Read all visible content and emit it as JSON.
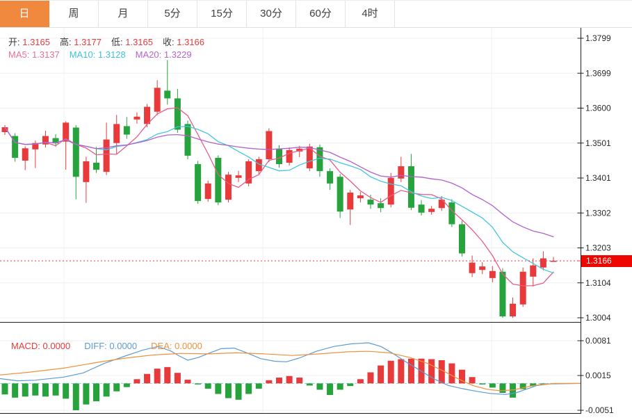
{
  "tabs": {
    "items": [
      {
        "label": "日",
        "active": true
      },
      {
        "label": "周",
        "active": false
      },
      {
        "label": "月",
        "active": false
      },
      {
        "label": "5分",
        "active": false
      },
      {
        "label": "15分",
        "active": false
      },
      {
        "label": "30分",
        "active": false
      },
      {
        "label": "60分",
        "active": false
      },
      {
        "label": "4时",
        "active": false
      }
    ],
    "active_color": "#f0883e"
  },
  "ohlc_legend": {
    "items": [
      {
        "label": "开:",
        "value": "1.3165"
      },
      {
        "label": "高:",
        "value": "1.3177"
      },
      {
        "label": "低:",
        "value": "1.3165"
      },
      {
        "label": "收:",
        "value": "1.3166"
      }
    ],
    "label_color": "#3a3a3a",
    "value_color": "#e83b3b"
  },
  "ma_legend": {
    "items": [
      {
        "label": "MA5:",
        "value": "1.3137",
        "color": "#ec6f96"
      },
      {
        "label": "MA10:",
        "value": "1.3128",
        "color": "#3fc3da"
      },
      {
        "label": "MA20:",
        "value": "1.3229",
        "color": "#b564ce"
      }
    ]
  },
  "macd_legend": {
    "items": [
      {
        "label": "MACD:",
        "value": "0.0000",
        "color": "#e83b3b"
      },
      {
        "label": "DIFF:",
        "value": "0.0000",
        "color": "#5b9bd5"
      },
      {
        "label": "DEA:",
        "value": "0.0000",
        "color": "#f0913c"
      }
    ]
  },
  "price_marker": {
    "value": "1.3166",
    "price": 1.3166,
    "badge_color": "#ee0600"
  },
  "colors": {
    "up_candle": "#e8393b",
    "down_candle": "#26a33c",
    "grid": "#edf0f3",
    "axis": "#2b2b2b",
    "axis_text": "#2a2a2a",
    "dotted_price_line": "#f2323c",
    "zero_dash_line": "#8fd3e6",
    "ma5_line": "#e75c8a",
    "ma10_line": "#44c7dd",
    "ma20_line": "#b261ca",
    "diff_line": "#5b9bd5",
    "dea_line": "#f0913c"
  },
  "chart_data": [
    {
      "type": "candlestick",
      "panel": "main",
      "title": "",
      "legend_position": "top-left",
      "grid": true,
      "y_tick_labels": [
        "1.3799",
        "1.3699",
        "1.3600",
        "1.3501",
        "1.3401",
        "1.3302",
        "1.3203",
        "1.3104",
        "1.3004"
      ],
      "y_tick_values": [
        1.3799,
        1.3699,
        1.36,
        1.3501,
        1.3401,
        1.3302,
        1.3203,
        1.3104,
        1.3004
      ],
      "ylim": [
        1.2985,
        1.383
      ],
      "current_price": 1.3166,
      "ma_windows": [
        5,
        10,
        20
      ],
      "candles": {
        "open": [
          1.3532,
          1.3521,
          1.3451,
          1.3483,
          1.3497,
          1.3515,
          1.3505,
          1.3545,
          1.339,
          1.3445,
          1.3419,
          1.3501,
          1.3549,
          1.3568,
          1.3555,
          1.359,
          1.365,
          1.3628,
          1.3555,
          1.3441,
          1.3342,
          1.3459,
          1.334,
          1.3402,
          1.3386,
          1.3421,
          1.3455,
          1.3485,
          1.3445,
          1.3477,
          1.3429,
          1.3489,
          1.3421,
          1.3405,
          1.3312,
          1.3344,
          1.334,
          1.333,
          1.3326,
          1.34,
          1.3435,
          1.3326,
          1.3305,
          1.3316,
          1.3332,
          1.327,
          1.3131,
          1.314,
          1.3117,
          1.3135,
          1.3008,
          1.3042,
          1.3121,
          1.3147,
          1.3165
        ],
        "high": [
          1.3552,
          1.3529,
          1.3492,
          1.3508,
          1.3536,
          1.3526,
          1.3563,
          1.3552,
          1.3462,
          1.349,
          1.3559,
          1.3581,
          1.3575,
          1.3588,
          1.3612,
          1.368,
          1.3737,
          1.3655,
          1.3565,
          1.345,
          1.3394,
          1.3466,
          1.3419,
          1.3422,
          1.3455,
          1.3462,
          1.3543,
          1.3495,
          1.3489,
          1.3493,
          1.3499,
          1.3497,
          1.3429,
          1.3413,
          1.3368,
          1.3362,
          1.3354,
          1.3344,
          1.3416,
          1.3462,
          1.347,
          1.3339,
          1.3322,
          1.335,
          1.3341,
          1.328,
          1.3181,
          1.3162,
          1.3151,
          1.3145,
          1.3062,
          1.3147,
          1.3173,
          1.3193,
          1.3177
        ],
        "low": [
          1.3524,
          1.3448,
          1.3424,
          1.343,
          1.3488,
          1.349,
          1.3425,
          1.3341,
          1.3331,
          1.3416,
          1.341,
          1.347,
          1.3513,
          1.3556,
          1.3546,
          1.358,
          1.361,
          1.353,
          1.3455,
          1.3328,
          1.3334,
          1.3324,
          1.3332,
          1.339,
          1.3378,
          1.3413,
          1.3447,
          1.3431,
          1.3437,
          1.3461,
          1.3421,
          1.3405,
          1.3368,
          1.3288,
          1.3268,
          1.3332,
          1.3314,
          1.3304,
          1.3318,
          1.339,
          1.331,
          1.3295,
          1.3297,
          1.3308,
          1.3262,
          1.3178,
          1.312,
          1.3128,
          1.3105,
          1.3004,
          1.3004,
          1.3035,
          1.3093,
          1.3139,
          1.3165
        ],
        "close": [
          1.3546,
          1.3459,
          1.3486,
          1.3501,
          1.3521,
          1.35,
          1.3559,
          1.3405,
          1.3449,
          1.3425,
          1.3511,
          1.3555,
          1.3525,
          1.3576,
          1.3604,
          1.3658,
          1.3628,
          1.3539,
          1.3465,
          1.3336,
          1.3386,
          1.3332,
          1.3411,
          1.3409,
          1.3449,
          1.3455,
          1.3535,
          1.3441,
          1.3481,
          1.3485,
          1.3491,
          1.3421,
          1.3386,
          1.3306,
          1.336,
          1.3352,
          1.3326,
          1.3316,
          1.3402,
          1.3435,
          1.3317,
          1.3303,
          1.3314,
          1.334,
          1.327,
          1.3187,
          1.3161,
          1.315,
          1.3137,
          1.3008,
          1.3044,
          1.3135,
          1.3153,
          1.3173,
          1.3166
        ]
      }
    },
    {
      "type": "bar",
      "panel": "macd",
      "grid": true,
      "y_tick_labels": [
        "0.0081",
        "0.0015",
        "-0.0051"
      ],
      "y_tick_values": [
        0.0081,
        0.0015,
        -0.0051
      ],
      "ylim": [
        -0.0056,
        0.0086
      ],
      "histogram": [
        -0.0021,
        -0.0027,
        -0.0025,
        -0.0023,
        -0.0025,
        -0.0023,
        -0.0029,
        -0.0051,
        -0.004,
        -0.0034,
        -0.0025,
        -0.0015,
        -0.0007,
        0.0008,
        0.0018,
        0.0028,
        0.0031,
        0.002,
        0.0007,
        -0.0002,
        -0.001,
        -0.002,
        -0.0028,
        -0.0031,
        -0.002,
        -0.001,
        0.0006,
        0.0011,
        0.0014,
        0.0011,
        -0.0004,
        -0.0012,
        -0.0022,
        -0.0012,
        -0.0005,
        0.0008,
        0.0021,
        0.0034,
        0.0043,
        0.0046,
        0.0047,
        0.0047,
        0.0046,
        0.0044,
        0.0038,
        0.0026,
        0.0012,
        -0.0002,
        -0.0008,
        -0.0018,
        -0.0027,
        -0.0011,
        -0.0005,
        -0.0002,
        -0.0001
      ],
      "diff_line": [
        [
          0,
          0.0009
        ],
        [
          25,
          0.0005
        ],
        [
          50,
          0.0006
        ],
        [
          92,
          0.0012
        ],
        [
          120,
          0.002
        ],
        [
          150,
          0.0038
        ],
        [
          180,
          0.0052
        ],
        [
          205,
          0.0063
        ],
        [
          227,
          0.007
        ],
        [
          245,
          0.0062
        ],
        [
          258,
          0.0052
        ],
        [
          270,
          0.0044
        ],
        [
          285,
          0.0049
        ],
        [
          300,
          0.0057
        ],
        [
          318,
          0.0066
        ],
        [
          337,
          0.0067
        ],
        [
          355,
          0.0058
        ],
        [
          375,
          0.0047
        ],
        [
          395,
          0.0042
        ],
        [
          412,
          0.0041
        ],
        [
          430,
          0.0048
        ],
        [
          455,
          0.0061
        ],
        [
          480,
          0.007
        ],
        [
          505,
          0.0075
        ],
        [
          530,
          0.0077
        ],
        [
          548,
          0.007
        ],
        [
          565,
          0.0057
        ],
        [
          585,
          0.004
        ],
        [
          605,
          0.0024
        ],
        [
          625,
          0.0008
        ],
        [
          645,
          -0.0004
        ],
        [
          665,
          -0.001
        ],
        [
          685,
          -0.0015
        ],
        [
          705,
          -0.0019
        ],
        [
          727,
          -0.0021
        ],
        [
          742,
          -0.0018
        ],
        [
          757,
          -0.0011
        ],
        [
          772,
          -0.0004
        ],
        [
          790,
          -0.0001
        ],
        [
          835,
          0.0
        ]
      ],
      "dea_line": [
        [
          0,
          0.0016
        ],
        [
          40,
          0.0021
        ],
        [
          92,
          0.0029
        ],
        [
          140,
          0.004
        ],
        [
          180,
          0.0048
        ],
        [
          220,
          0.0054
        ],
        [
          260,
          0.0057
        ],
        [
          300,
          0.0056
        ],
        [
          340,
          0.0058
        ],
        [
          380,
          0.0056
        ],
        [
          420,
          0.0053
        ],
        [
          460,
          0.0056
        ],
        [
          500,
          0.006
        ],
        [
          530,
          0.0061
        ],
        [
          560,
          0.0058
        ],
        [
          590,
          0.0049
        ],
        [
          615,
          0.0038
        ],
        [
          640,
          0.0022
        ],
        [
          660,
          0.0008
        ],
        [
          680,
          -0.0004
        ],
        [
          700,
          -0.0011
        ],
        [
          720,
          -0.0014
        ],
        [
          740,
          -0.0012
        ],
        [
          760,
          -0.0006
        ],
        [
          778,
          -0.0002
        ],
        [
          800,
          0.0
        ],
        [
          835,
          0.0
        ]
      ]
    }
  ]
}
